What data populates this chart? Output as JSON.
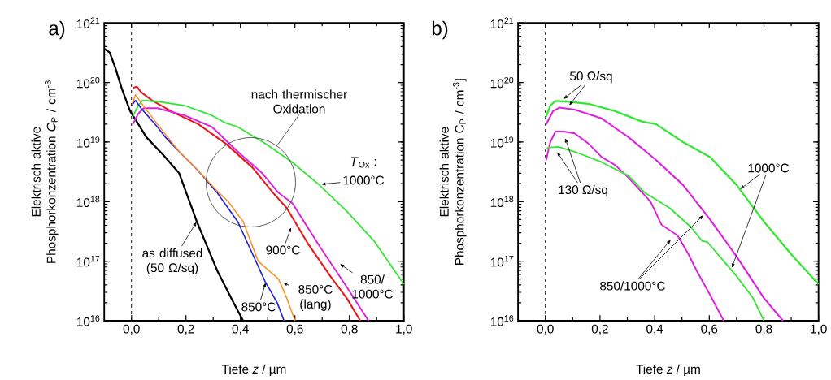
{
  "chart_data": [
    {
      "type": "line",
      "title": "a)",
      "xlabel": "Tiefe *z* / µm",
      "ylabel": "Elektrisch aktive Phosphorkonzentration *C*$_{P}$ / cm$^{-3}$",
      "log": "y",
      "xlim": [
        -0.1,
        1.0
      ],
      "ylim": [
        1e+16,
        1e+21
      ],
      "xticks": [
        {
          "value": 0,
          "label": "0,0"
        },
        {
          "value": 0.2,
          "label": "0,2"
        },
        {
          "value": 0.4,
          "label": "0,4"
        },
        {
          "value": 0.6,
          "label": "0,6"
        },
        {
          "value": 0.8,
          "label": "0,8"
        },
        {
          "value": 1.0,
          "label": "1,0"
        }
      ],
      "yticks": [
        {
          "value": 1e+16,
          "label": "10$^{16}$"
        },
        {
          "value": 1e+17,
          "label": "10$^{17}$"
        },
        {
          "value": 1e+18,
          "label": "10$^{18}$"
        },
        {
          "value": 1e+19,
          "label": "10$^{19}$"
        },
        {
          "value": 1e+20,
          "label": "10$^{20}$"
        },
        {
          "value": 1e+21,
          "label": "10$^{21}$"
        }
      ],
      "ref_lines": [
        {
          "axis": "x",
          "value": 0,
          "color": "#000000",
          "line_style": "dashed"
        }
      ],
      "series": [
        {
          "color": "#000000",
          "x": [
            -0.1,
            -0.08,
            -0.06,
            -0.035,
            -0.005,
            0.025,
            0.055,
            0.115,
            0.175,
            0.24,
            0.315,
            0.375,
            0.41
          ],
          "values": [
            3.7e+20,
            3.2e+20,
            1.8e+20,
            7.8e+19,
            3.3e+19,
            2e+19,
            1.2e+19,
            6.2e+18,
            3e+18,
            4.6e+17,
            6.9e+16,
            2e+16,
            1e+16
          ]
        },
        {
          "color": "#e8191c",
          "x": [
            0.005,
            0.02,
            0.035,
            0.075,
            0.145,
            0.245,
            0.345,
            0.445,
            0.52,
            0.57,
            0.65,
            0.73,
            0.79,
            0.84
          ],
          "values": [
            8.1e+19,
            8.5e+19,
            6.9e+19,
            5e+19,
            3.3e+19,
            2e+19,
            9.5e+18,
            3.7e+18,
            1.4e+18,
            7.8e+17,
            1.9e+17,
            5.6e+16,
            2.4e+16,
            1e+16
          ]
        },
        {
          "color": "#e020e0",
          "x": [
            0.005,
            0.025,
            0.045,
            0.095,
            0.195,
            0.295,
            0.39,
            0.48,
            0.54,
            0.59,
            0.69,
            0.79,
            0.87
          ],
          "values": [
            2e+19,
            3e+19,
            3.7e+19,
            3.7e+19,
            2.8e+19,
            1.8e+19,
            6.9e+18,
            3e+18,
            1.4e+18,
            9.5e+17,
            1.8e+17,
            3.7e+16,
            1e+16
          ]
        },
        {
          "color": "#33e633",
          "x": [
            0.005,
            0.025,
            0.04,
            0.095,
            0.195,
            0.295,
            0.345,
            0.39,
            0.49,
            0.59,
            0.69,
            0.79,
            0.89,
            1.0
          ],
          "values": [
            2.7e+19,
            4.1e+19,
            5e+19,
            4.8e+19,
            4.1e+19,
            2.8e+19,
            2.1e+19,
            1.8e+19,
            9.5e+18,
            4.6e+18,
            1.9e+18,
            6.9e+17,
            2.2e+17,
            4.1e+16
          ]
        },
        {
          "color": "#1f1fdc",
          "x": [
            0.0,
            0.015,
            0.035,
            0.095,
            0.125,
            0.175,
            0.245,
            0.315,
            0.39,
            0.445,
            0.49,
            0.535,
            0.56
          ],
          "values": [
            4.1e+19,
            5e+19,
            3.7e+19,
            1.8e+19,
            1.2e+19,
            6.9e+18,
            3.3e+18,
            1.4e+18,
            4.6e+17,
            1.3e+17,
            4.6e+16,
            2e+16,
            1e+16
          ]
        },
        {
          "color": "#ff8c1a",
          "x": [
            0.0,
            0.015,
            0.035,
            0.095,
            0.175,
            0.245,
            0.315,
            0.355,
            0.41,
            0.465,
            0.54,
            0.57,
            0.6
          ],
          "values": [
            4.1e+19,
            6.2e+19,
            4.6e+19,
            2e+19,
            6.9e+18,
            3.3e+18,
            1.5e+18,
            1e+18,
            4.6e+17,
            1e+17,
            5e+16,
            2.4e+16,
            1e+16
          ]
        }
      ],
      "annotations": [
        "nach thermischer Oxidation",
        "*T*$_{Ox}$ :",
        "1000°C",
        "as diffused (50 Ω/sq)",
        "900°C",
        "850/ 1000°C",
        "850°C (lang)",
        "850°C"
      ]
    },
    {
      "type": "line",
      "title": "b)",
      "xlabel": "Tiefe *z* / µm",
      "ylabel": "Elektrisch aktive Phosphorkonzentration C$_{P}$ / cm$^{-3}$]",
      "log": "y",
      "xlim": [
        -0.1,
        1.0
      ],
      "ylim": [
        1e+16,
        1e+21
      ],
      "xticks": [
        {
          "value": 0,
          "label": "0,0"
        },
        {
          "value": 0.2,
          "label": "0,2"
        },
        {
          "value": 0.4,
          "label": "0,4"
        },
        {
          "value": 0.6,
          "label": "0,6"
        },
        {
          "value": 0.8,
          "label": "0,8"
        },
        {
          "value": 1.0,
          "label": "1,0"
        }
      ],
      "yticks": [
        {
          "value": 1e+16,
          "label": "10$^{16}$"
        },
        {
          "value": 1e+17,
          "label": "10$^{17}$"
        },
        {
          "value": 1e+18,
          "label": "10$^{18}$"
        },
        {
          "value": 1e+19,
          "label": "10$^{19}$"
        },
        {
          "value": 1e+20,
          "label": "10$^{20}$"
        },
        {
          "value": 1e+21,
          "label": "10$^{21}$"
        }
      ],
      "ref_lines": [
        {
          "axis": "x",
          "value": 0,
          "color": "#000000",
          "line_style": "dashed"
        }
      ],
      "series": [
        {
          "color": "#33e633",
          "x": [
            0.003,
            0.018,
            0.037,
            0.077,
            0.157,
            0.256,
            0.355,
            0.405,
            0.504,
            0.603,
            0.7,
            0.8,
            0.9,
            1.0
          ],
          "values": [
            2.7e+19,
            4.1e+19,
            4.9e+19,
            4.8e+19,
            4.4e+19,
            3.3e+19,
            2.2e+19,
            2e+19,
            1e+19,
            5.6e+18,
            1.9e+18,
            4.6e+17,
            1.3e+17,
            4.1e+16
          ]
        },
        {
          "color": "#e020e0",
          "x": [
            0.003,
            0.028,
            0.052,
            0.107,
            0.206,
            0.305,
            0.405,
            0.504,
            0.603,
            0.7,
            0.8,
            0.87
          ],
          "values": [
            2e+19,
            3.3e+19,
            3.8e+19,
            3.5e+19,
            2.5e+19,
            1.2e+19,
            5e+18,
            1.9e+18,
            5e+17,
            1.2e+17,
            2.4e+16,
            1e+16
          ]
        },
        {
          "color": "#e020e0",
          "x": [
            0.003,
            0.018,
            0.037,
            0.067,
            0.107,
            0.157,
            0.206,
            0.256,
            0.305,
            0.385,
            0.425,
            0.484,
            0.524,
            0.554,
            0.603,
            0.653
          ],
          "values": [
            5e+18,
            1e+19,
            1.5e+19,
            1.5e+19,
            1.4e+19,
            9.5e+18,
            5.6e+18,
            4.1e+18,
            2.5e+18,
            1e+18,
            4.1e+17,
            2.7e+17,
            1.3e+17,
            6.9e+16,
            2.7e+16,
            1e+16
          ]
        },
        {
          "color": "#33e633",
          "x": [
            0.003,
            0.018,
            0.048,
            0.107,
            0.206,
            0.305,
            0.365,
            0.455,
            0.534,
            0.573,
            0.593,
            0.653,
            0.7,
            0.76,
            0.8
          ],
          "values": [
            7.8e+18,
            8.1e+18,
            8.3e+18,
            6.9e+18,
            4.6e+18,
            2.7e+18,
            1.4e+18,
            7.8e+17,
            3.7e+17,
            2.2e+17,
            2.1e+17,
            1e+17,
            5.6e+16,
            2.4e+16,
            1e+16
          ]
        }
      ],
      "annotations": [
        "50 Ω/sq",
        "130 Ω/sq",
        "1000°C",
        "850/1000°C"
      ]
    }
  ]
}
